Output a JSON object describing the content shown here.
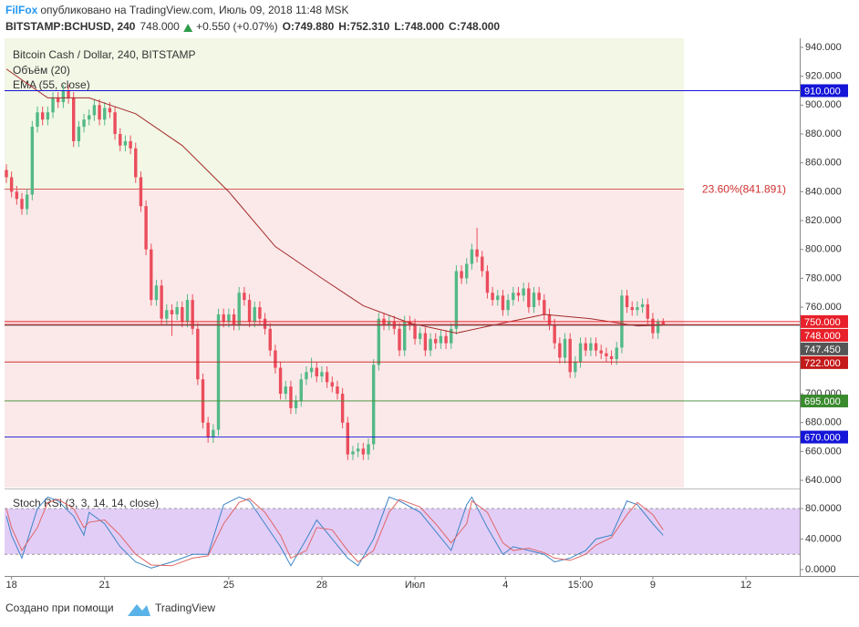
{
  "header": {
    "author": "FilFox",
    "published": "опубликовано на TradingView.com, Июль 09, 2018 11:48 MSK",
    "symbol": "BITSTAMP:BCHUSD, 240",
    "last": "748.000",
    "change": "+0.550 (+0.07%)",
    "ohlc": [
      "O:749.880",
      "H:752.310",
      "L:748.000",
      "C:748.000"
    ]
  },
  "chart_data": [
    {
      "type": "candlestick",
      "title": "Bitcoin Cash / Dollar, 240, BITSTAMP",
      "volume_label": "Объём (20)",
      "up_color": "#53b987",
      "down_color": "#eb4d5c",
      "candles": [
        [
          855,
          859,
          846,
          850
        ],
        [
          850,
          854,
          836,
          840
        ],
        [
          840,
          844,
          831,
          835
        ],
        [
          835,
          839,
          824,
          828
        ],
        [
          828,
          842,
          824,
          838
        ],
        [
          838,
          889,
          834,
          885
        ],
        [
          885,
          899,
          881,
          895
        ],
        [
          895,
          899,
          886,
          890
        ],
        [
          890,
          899,
          886,
          895
        ],
        [
          895,
          909,
          891,
          905
        ],
        [
          905,
          909,
          898,
          902
        ],
        [
          902,
          914,
          898,
          910
        ],
        [
          910,
          914,
          901,
          905
        ],
        [
          905,
          909,
          871,
          875
        ],
        [
          875,
          889,
          871,
          885
        ],
        [
          885,
          894,
          881,
          890
        ],
        [
          890,
          897,
          886,
          893
        ],
        [
          893,
          904,
          889,
          900
        ],
        [
          900,
          904,
          886,
          890
        ],
        [
          890,
          902,
          886,
          898
        ],
        [
          898,
          902,
          891,
          895
        ],
        [
          895,
          899,
          876,
          880
        ],
        [
          880,
          884,
          868,
          872
        ],
        [
          872,
          879,
          868,
          875
        ],
        [
          875,
          879,
          866,
          870
        ],
        [
          870,
          874,
          846,
          850
        ],
        [
          850,
          854,
          826,
          830
        ],
        [
          830,
          834,
          796,
          800
        ],
        [
          800,
          804,
          761,
          765
        ],
        [
          765,
          779,
          761,
          775
        ],
        [
          775,
          779,
          748,
          752
        ],
        [
          752,
          762,
          748,
          758
        ],
        [
          758,
          762,
          740,
          755
        ],
        [
          755,
          764,
          751,
          760
        ],
        [
          760,
          764,
          746,
          750
        ],
        [
          750,
          769,
          746,
          765
        ],
        [
          765,
          769,
          741,
          745
        ],
        [
          745,
          749,
          706,
          710
        ],
        [
          710,
          714,
          676,
          680
        ],
        [
          680,
          684,
          666,
          670
        ],
        [
          670,
          679,
          666,
          675
        ],
        [
          675,
          759,
          671,
          755
        ],
        [
          755,
          759,
          746,
          750
        ],
        [
          750,
          759,
          746,
          755
        ],
        [
          755,
          759,
          744,
          748
        ],
        [
          748,
          774,
          744,
          770
        ],
        [
          770,
          774,
          761,
          765
        ],
        [
          765,
          769,
          746,
          750
        ],
        [
          750,
          764,
          746,
          760
        ],
        [
          760,
          764,
          748,
          752
        ],
        [
          752,
          756,
          741,
          745
        ],
        [
          745,
          749,
          726,
          730
        ],
        [
          730,
          734,
          714,
          718
        ],
        [
          718,
          722,
          696,
          700
        ],
        [
          700,
          709,
          696,
          705
        ],
        [
          705,
          709,
          686,
          690
        ],
        [
          690,
          699,
          686,
          695
        ],
        [
          695,
          714,
          691,
          710
        ],
        [
          710,
          719,
          706,
          715
        ],
        [
          715,
          725,
          711,
          718
        ],
        [
          718,
          722,
          708,
          712
        ],
        [
          712,
          719,
          708,
          715
        ],
        [
          715,
          719,
          704,
          708
        ],
        [
          708,
          712,
          701,
          705
        ],
        [
          705,
          709,
          696,
          700
        ],
        [
          700,
          704,
          676,
          680
        ],
        [
          680,
          684,
          654,
          658
        ],
        [
          658,
          664,
          654,
          660
        ],
        [
          660,
          666,
          656,
          662
        ],
        [
          662,
          666,
          654,
          658
        ],
        [
          658,
          669,
          654,
          665
        ],
        [
          665,
          724,
          661,
          720
        ],
        [
          720,
          756,
          716,
          752
        ],
        [
          752,
          756,
          744,
          748
        ],
        [
          748,
          754,
          744,
          750
        ],
        [
          750,
          754,
          741,
          745
        ],
        [
          745,
          749,
          726,
          730
        ],
        [
          730,
          754,
          726,
          750
        ],
        [
          750,
          754,
          744,
          748
        ],
        [
          748,
          752,
          734,
          738
        ],
        [
          738,
          746,
          734,
          742
        ],
        [
          742,
          746,
          726,
          730
        ],
        [
          730,
          742,
          726,
          738
        ],
        [
          738,
          742,
          731,
          735
        ],
        [
          735,
          744,
          731,
          740
        ],
        [
          740,
          744,
          731,
          735
        ],
        [
          735,
          749,
          731,
          745
        ],
        [
          745,
          789,
          741,
          785
        ],
        [
          785,
          789,
          776,
          780
        ],
        [
          780,
          794,
          776,
          790
        ],
        [
          790,
          804,
          786,
          800
        ],
        [
          800,
          815,
          791,
          795
        ],
        [
          795,
          799,
          781,
          785
        ],
        [
          785,
          789,
          766,
          770
        ],
        [
          770,
          774,
          761,
          765
        ],
        [
          765,
          772,
          761,
          768
        ],
        [
          768,
          772,
          754,
          758
        ],
        [
          758,
          769,
          754,
          765
        ],
        [
          765,
          774,
          761,
          770
        ],
        [
          770,
          774,
          764,
          768
        ],
        [
          768,
          777,
          764,
          773
        ],
        [
          773,
          777,
          756,
          760
        ],
        [
          760,
          774,
          756,
          770
        ],
        [
          770,
          774,
          761,
          765
        ],
        [
          765,
          769,
          751,
          755
        ],
        [
          755,
          759,
          744,
          748
        ],
        [
          748,
          752,
          731,
          735
        ],
        [
          735,
          739,
          721,
          725
        ],
        [
          725,
          742,
          721,
          738
        ],
        [
          738,
          742,
          711,
          715
        ],
        [
          715,
          726,
          711,
          722
        ],
        [
          722,
          739,
          718,
          735
        ],
        [
          735,
          739,
          726,
          730
        ],
        [
          730,
          739,
          726,
          735
        ],
        [
          735,
          739,
          726,
          730
        ],
        [
          730,
          734,
          724,
          728
        ],
        [
          728,
          732,
          722,
          726
        ],
        [
          726,
          730,
          720,
          724
        ],
        [
          724,
          736,
          720,
          732
        ],
        [
          732,
          772,
          728,
          768
        ],
        [
          768,
          772,
          756,
          760
        ],
        [
          760,
          764,
          754,
          758
        ],
        [
          758,
          764,
          754,
          760
        ],
        [
          760,
          766,
          756,
          762
        ],
        [
          762,
          766,
          748,
          752
        ],
        [
          752,
          756,
          738,
          742
        ],
        [
          742,
          752,
          738,
          749.88
        ],
        [
          749.88,
          752.31,
          748,
          748
        ]
      ],
      "ema": {
        "name": "EMA (55, close)",
        "color": "#a52a2a",
        "x": [
          0,
          8,
          16,
          25,
          34,
          43,
          52,
          61,
          69,
          78,
          87,
          96,
          104,
          113,
          122,
          127
        ],
        "values": [
          925,
          905,
          905,
          894,
          872,
          840,
          802,
          780,
          761,
          749,
          742,
          749,
          755,
          752,
          747,
          747.45
        ]
      },
      "zones": [
        {
          "from": 841.891,
          "to": 946.3,
          "color": "#f2f7e6"
        },
        {
          "from": 635,
          "to": 841.891,
          "color": "#fbe9e9"
        }
      ],
      "fib": {
        "value": 841.891,
        "label": "23.60%(841.891)",
        "color": "#d03030"
      },
      "levels": [
        {
          "value": 910,
          "label": "910.000",
          "color": "#1515d8"
        },
        {
          "value": 750,
          "label": "750.000",
          "color": "#e8202a"
        },
        {
          "value": 748,
          "label": "748.000",
          "color": "#e8202a"
        },
        {
          "value": 747.45,
          "label": "747.450",
          "color": "#555555"
        },
        {
          "value": 722,
          "label": "722.000",
          "color": "#c41a1a"
        },
        {
          "value": 695,
          "label": "695.000",
          "color": "#3a8a2e"
        },
        {
          "value": 670,
          "label": "670.000",
          "color": "#1515d8"
        }
      ],
      "xlim": [
        -0.35,
        153.4
      ],
      "ylim": [
        635,
        946.3
      ],
      "yticks": [
        {
          "value": 640,
          "label": "640.000"
        },
        {
          "value": 660,
          "label": "660.000"
        },
        {
          "value": 680,
          "label": "680.000"
        },
        {
          "value": 700,
          "label": "700.000"
        },
        {
          "value": 720,
          "label": "720.000"
        },
        {
          "value": 740,
          "label": "740.000"
        },
        {
          "value": 760,
          "label": "760.000"
        },
        {
          "value": 780,
          "label": "780.000"
        },
        {
          "value": 800,
          "label": "800.000"
        },
        {
          "value": 820,
          "label": "820.000"
        },
        {
          "value": 840,
          "label": "840.000"
        },
        {
          "value": 860,
          "label": "860.000"
        },
        {
          "value": 880,
          "label": "880.000"
        },
        {
          "value": 900,
          "label": "900.000"
        },
        {
          "value": 920,
          "label": "920.000"
        },
        {
          "value": 940,
          "label": "940.000"
        }
      ],
      "xticks": [
        {
          "value": 1,
          "label": "18"
        },
        {
          "value": 19,
          "label": "21"
        },
        {
          "value": 43,
          "label": "25"
        },
        {
          "value": 61,
          "label": "28"
        },
        {
          "value": 79,
          "label": "Июл"
        },
        {
          "value": 96.5,
          "label": "4"
        },
        {
          "value": 111,
          "label": "15:00"
        },
        {
          "value": 125,
          "label": "9"
        },
        {
          "value": 143,
          "label": "12"
        }
      ]
    },
    {
      "type": "line",
      "title": "Stoch RSI (3, 3, 14, 14, close)",
      "xlim": [
        -0.35,
        153.4
      ],
      "ylim": [
        -8.4,
        101.5
      ],
      "band": [
        20,
        80
      ],
      "band_color": "#e2cdf7",
      "yticks": [
        {
          "value": 0,
          "label": "0.0000"
        },
        {
          "value": 40,
          "label": "40.0000"
        },
        {
          "value": 80,
          "label": "80.0000"
        }
      ],
      "x": [
        0,
        1,
        3,
        6,
        8,
        10,
        13,
        15,
        16,
        19,
        22,
        25,
        28,
        32,
        36,
        39,
        42,
        45,
        47,
        50,
        53,
        55,
        58,
        60,
        63,
        66,
        68,
        71,
        74,
        76,
        80,
        83,
        86,
        89,
        90,
        93,
        96,
        98,
        101,
        104,
        106,
        109,
        112,
        114,
        117,
        120,
        122,
        125,
        127
      ],
      "series": [
        {
          "name": "K",
          "color": "#3d85c6",
          "values": [
            70,
            45,
            15,
            80,
            95,
            90,
            70,
            45,
            75,
            60,
            30,
            10,
            2,
            10,
            20,
            20,
            85,
            95,
            90,
            60,
            30,
            5,
            40,
            65,
            40,
            15,
            5,
            40,
            95,
            90,
            75,
            50,
            25,
            85,
            95,
            55,
            20,
            30,
            25,
            20,
            10,
            15,
            25,
            40,
            45,
            90,
            85,
            60,
            45
          ]
        },
        {
          "name": "D",
          "color": "#e06666",
          "values": [
            80,
            55,
            25,
            55,
            88,
            92,
            80,
            55,
            62,
            65,
            45,
            20,
            6,
            5,
            15,
            18,
            60,
            88,
            93,
            75,
            45,
            15,
            25,
            55,
            52,
            25,
            10,
            25,
            75,
            92,
            82,
            60,
            35,
            60,
            90,
            75,
            35,
            25,
            28,
            22,
            15,
            12,
            20,
            32,
            42,
            72,
            88,
            72,
            52
          ]
        }
      ]
    }
  ],
  "footer": {
    "made_with": "Создано при помощи",
    "brand": "TradingView"
  }
}
